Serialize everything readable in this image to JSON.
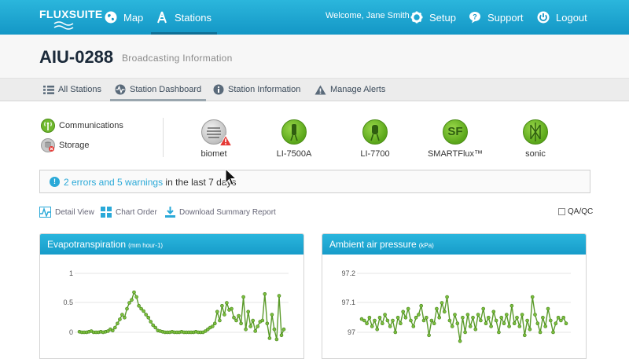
{
  "app": {
    "logo_text": "FLUXSUITE"
  },
  "nav": {
    "map": "Map",
    "stations": "Stations",
    "welcome": "Welcome, Jane Smith",
    "setup": "Setup",
    "support": "Support",
    "logout": "Logout"
  },
  "header": {
    "station_id": "AIU-0288",
    "subtitle": "Broadcasting Information"
  },
  "subnav": {
    "all_stations": "All Stations",
    "station_dashboard": "Station Dashboard",
    "station_information": "Station Information",
    "manage_alerts": "Manage Alerts"
  },
  "status": {
    "communications": "Communications",
    "storage": "Storage"
  },
  "instruments": [
    {
      "label": "biomet",
      "style": "gray",
      "icon": "biomet-icon",
      "warning": true
    },
    {
      "label": "LI-7500A",
      "style": "green",
      "icon": "analyzer-icon",
      "warning": false
    },
    {
      "label": "LI-7700",
      "style": "green",
      "icon": "methane-analyzer-icon",
      "warning": false
    },
    {
      "label": "SMARTFlux™",
      "style": "green",
      "icon": "smartflux-icon",
      "glyph": "SF",
      "warning": false
    },
    {
      "label": "sonic",
      "style": "green",
      "icon": "sonic-anemometer-icon",
      "warning": false
    }
  ],
  "alert": {
    "link_text": "2 errors and 5 warnings",
    "rest_text": " in the last 7 days"
  },
  "tools": {
    "detail_view": "Detail View",
    "chart_order": "Chart Order",
    "download": "Download Summary Report",
    "qaqc": "QA/QC"
  },
  "colors": {
    "accent": "#1fa8d6",
    "series": "#5a9a2a",
    "marker": "#7cbf3e"
  },
  "chart_data": [
    {
      "type": "line",
      "title": "Evapotranspiration",
      "unit": "(mm hour-1)",
      "yticks": [
        "1",
        "0.5",
        "0"
      ],
      "ylim": [
        0,
        1
      ],
      "x": [
        0,
        1,
        2,
        3,
        4,
        5,
        6,
        7,
        8,
        9,
        10,
        11,
        12,
        13,
        14,
        15,
        16,
        17,
        18,
        19,
        20,
        21,
        22,
        23,
        24,
        25,
        26,
        27,
        28,
        29,
        30,
        31,
        32,
        33,
        34,
        35,
        36,
        37,
        38,
        39,
        40,
        41,
        42,
        43,
        44,
        45,
        46,
        47,
        48,
        49,
        50,
        51,
        52,
        53,
        54,
        55,
        56,
        57,
        58,
        59,
        60,
        61,
        62,
        63,
        64,
        65,
        66,
        67,
        68,
        69,
        70,
        71,
        72,
        73,
        74,
        75,
        76,
        77,
        78,
        79,
        80,
        81,
        82,
        83,
        84,
        85,
        86
      ],
      "series": [
        {
          "values": [
            0.01,
            0.0,
            0.0,
            0.0,
            0.01,
            0.02,
            0.0,
            0.0,
            0.0,
            0.01,
            0.0,
            0.01,
            0.02,
            0.05,
            0.03,
            0.08,
            0.15,
            0.22,
            0.3,
            0.25,
            0.4,
            0.5,
            0.55,
            0.68,
            0.6,
            0.45,
            0.4,
            0.36,
            0.3,
            0.25,
            0.18,
            0.12,
            0.08,
            0.03,
            0.02,
            0.01,
            0.0,
            0.0,
            0.0,
            0.01,
            0.0,
            0.0,
            0.0,
            0.01,
            0.0,
            0.0,
            0.0,
            0.0,
            0.0,
            0.01,
            0.0,
            0.0,
            0.0,
            0.02,
            0.05,
            0.08,
            0.1,
            0.15,
            0.35,
            0.2,
            0.45,
            0.3,
            0.5,
            0.38,
            0.4,
            0.25,
            0.2,
            0.28,
            0.15,
            0.6,
            0.05,
            0.35,
            0.1,
            0.2,
            0.02,
            0.1,
            0.18,
            0.2,
            0.65,
            0.15,
            -0.1,
            0.3,
            0.05,
            -0.12,
            0.62,
            -0.05,
            0.05
          ]
        }
      ]
    },
    {
      "type": "line",
      "title": "Ambient air pressure",
      "unit": "(kPa)",
      "yticks": [
        "97.2",
        "97.1",
        "97"
      ],
      "ylim": [
        97.0,
        97.2
      ],
      "x": [
        0,
        1,
        2,
        3,
        4,
        5,
        6,
        7,
        8,
        9,
        10,
        11,
        12,
        13,
        14,
        15,
        16,
        17,
        18,
        19,
        20,
        21,
        22,
        23,
        24,
        25,
        26,
        27,
        28,
        29,
        30,
        31,
        32,
        33,
        34,
        35,
        36,
        37,
        38,
        39,
        40,
        41,
        42,
        43,
        44,
        45,
        46,
        47,
        48,
        49,
        50,
        51,
        52,
        53,
        54,
        55,
        56,
        57,
        58,
        59,
        60,
        61,
        62,
        63,
        64,
        65,
        66,
        67,
        68,
        69,
        70,
        71,
        72,
        73,
        74,
        75,
        76,
        77,
        78,
        79
      ],
      "series": [
        {
          "values": [
            97.045,
            97.04,
            97.03,
            97.05,
            97.02,
            97.04,
            97.01,
            97.05,
            97.03,
            97.06,
            97.04,
            97.02,
            97.04,
            97.0,
            97.05,
            97.03,
            97.07,
            97.05,
            97.08,
            97.04,
            97.02,
            97.05,
            97.06,
            97.09,
            97.04,
            97.05,
            96.99,
            97.04,
            97.03,
            97.08,
            97.05,
            97.1,
            97.07,
            97.12,
            97.04,
            97.02,
            97.06,
            97.03,
            96.97,
            97.05,
            97.0,
            97.06,
            97.02,
            97.05,
            97.01,
            97.06,
            97.04,
            97.08,
            97.03,
            97.05,
            97.02,
            97.07,
            97.04,
            97.0,
            97.05,
            97.03,
            97.06,
            97.02,
            97.09,
            97.03,
            97.05,
            97.02,
            97.06,
            96.99,
            97.04,
            97.01,
            97.12,
            97.06,
            97.03,
            97.0,
            97.05,
            97.02,
            97.08,
            97.04,
            97.0,
            97.03,
            97.05,
            97.04,
            97.05,
            97.03
          ]
        }
      ]
    }
  ]
}
